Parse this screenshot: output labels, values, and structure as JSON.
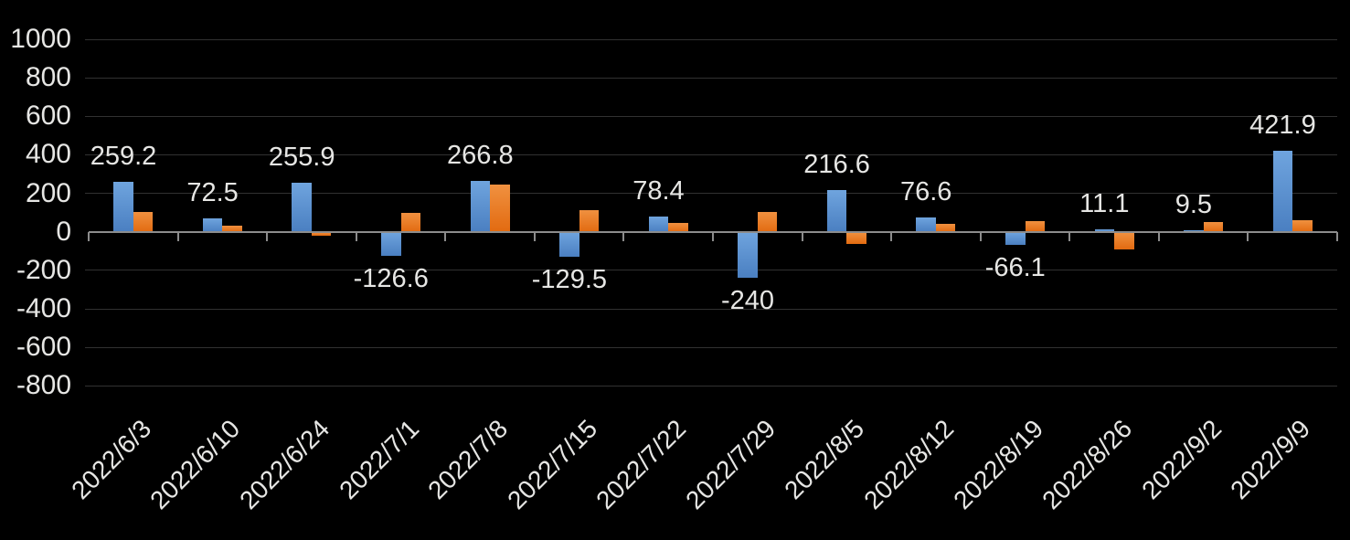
{
  "chart": {
    "background_color": "#000000",
    "label_color": "#e6e6e4",
    "gridline_color": "#313131",
    "axis_color": "#8c8c8c",
    "series_styles": {
      "blue": {
        "top": "#6fa4de",
        "bottom": "#4a7fc1"
      },
      "orange": {
        "top": "#f09140",
        "bottom": "#e26a10"
      }
    }
  },
  "chart_data": {
    "type": "bar",
    "title": "",
    "xlabel": "",
    "ylabel": "",
    "categories": [
      "2022/6/3",
      "2022/6/10",
      "2022/6/24",
      "2022/7/1",
      "2022/7/8",
      "2022/7/15",
      "2022/7/22",
      "2022/7/29",
      "2022/8/5",
      "2022/8/12",
      "2022/8/19",
      "2022/8/26",
      "2022/9/2",
      "2022/9/9"
    ],
    "series": [
      {
        "name": "series-blue",
        "color": "#5b9bd5",
        "values": [
          259.2,
          72.5,
          255.9,
          -126.6,
          266.8,
          -129.5,
          78.4,
          -240,
          216.6,
          76.6,
          -66.1,
          11.1,
          9.5,
          421.9
        ],
        "data_labels": [
          "259.2",
          "72.5",
          "255.9",
          "-126.6",
          "266.8",
          "-129.5",
          "78.4",
          "-240",
          "216.6",
          "76.6",
          "-66.1",
          "11.1",
          "9.5",
          "421.9"
        ]
      },
      {
        "name": "series-orange",
        "color": "#ed7d31",
        "values": [
          105,
          32,
          -18,
          100,
          245,
          115,
          45,
          105,
          -65,
          42,
          57,
          -90,
          53,
          60
        ],
        "data_labels": []
      }
    ],
    "y_ticks": [
      "1000",
      "800",
      "600",
      "400",
      "200",
      "0",
      "-200",
      "-400",
      "-600",
      "-800"
    ],
    "ylim": [
      -800,
      1000
    ],
    "grid": true,
    "legend": false,
    "x_label_rotation_deg": 45
  }
}
